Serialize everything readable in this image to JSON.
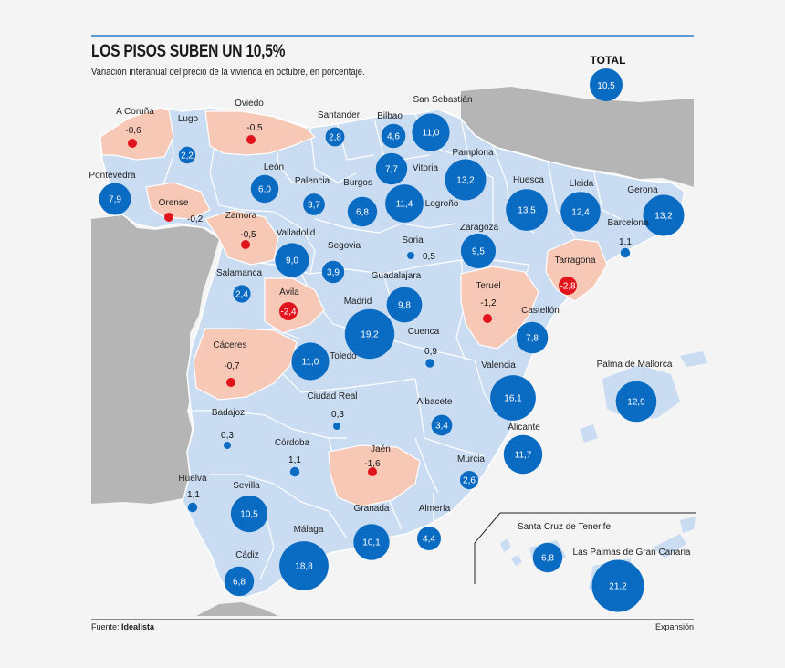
{
  "title": "LOS PISOS SUBEN UN 10,5%",
  "subtitle": "Variación interanual del precio de la vivienda en octubre, en porcentaje.",
  "source_prefix": "Fuente:",
  "source_name": "Idealista",
  "brand": "Expansión",
  "total": {
    "label": "TOTAL",
    "value": "10,5"
  },
  "canary_labels": [
    "Santa Cruz de Tenerife",
    "Las Palmas de Gran Canaria"
  ],
  "colors": {
    "land_positive": "#c9dcf2",
    "land_negative": "#f8c8b6",
    "neighbour": "#b5b5b6",
    "sea": "#f4f4f4",
    "bubble_positive": "#0a6bc2",
    "bubble_negative": "#e1141d",
    "border": "#ffffff"
  },
  "provinces": [
    {
      "name": "A Coruña",
      "value": "-0,6"
    },
    {
      "name": "Lugo",
      "value": "2,2"
    },
    {
      "name": "Oviedo",
      "value": "-0,5"
    },
    {
      "name": "Santander",
      "value": "2,8"
    },
    {
      "name": "Bilbao",
      "value": "4,6"
    },
    {
      "name": "San Sebastián",
      "value": "11,0"
    },
    {
      "name": "Pontevedra",
      "value": "7,9"
    },
    {
      "name": "León",
      "value": "6,0"
    },
    {
      "name": "Palencia",
      "value": "3,7"
    },
    {
      "name": "Burgos",
      "value": "6,8"
    },
    {
      "name": "Vitoria",
      "value": "7,7"
    },
    {
      "name": "Logroño",
      "value": "11,4"
    },
    {
      "name": "Pamplona",
      "value": "13,2"
    },
    {
      "name": "Huesca",
      "value": "13,5"
    },
    {
      "name": "Lleida",
      "value": "12,4"
    },
    {
      "name": "Gerona",
      "value": "13,2"
    },
    {
      "name": "Orense",
      "value": "-0,2"
    },
    {
      "name": "Zamora",
      "value": "-0,5"
    },
    {
      "name": "Valladolid",
      "value": "9,0"
    },
    {
      "name": "Soria",
      "value": "0,5"
    },
    {
      "name": "Zaragoza",
      "value": "9,5"
    },
    {
      "name": "Barcelona",
      "value": "1,1"
    },
    {
      "name": "Segovia",
      "value": "3,9"
    },
    {
      "name": "Tarragona",
      "value": "-2,8"
    },
    {
      "name": "Salamanca",
      "value": "2,4"
    },
    {
      "name": "Ávila",
      "value": "-2,4"
    },
    {
      "name": "Guadalajara",
      "value": "9,8"
    },
    {
      "name": "Teruel",
      "value": "-1,2"
    },
    {
      "name": "Madrid",
      "value": "19,2"
    },
    {
      "name": "Castellón",
      "value": "7,8"
    },
    {
      "name": "Cáceres",
      "value": "-0,7"
    },
    {
      "name": "Toledo",
      "value": "11,0"
    },
    {
      "name": "Cuenca",
      "value": "0,9"
    },
    {
      "name": "Valencia",
      "value": "16,1"
    },
    {
      "name": "Palma de Mallorca",
      "value": "12,9"
    },
    {
      "name": "Ciudad Real",
      "value": "0,3"
    },
    {
      "name": "Albacete",
      "value": "3,4"
    },
    {
      "name": "Badajoz",
      "value": "0,3"
    },
    {
      "name": "Alicante",
      "value": "11,7"
    },
    {
      "name": "Córdoba",
      "value": "1,1"
    },
    {
      "name": "Jaén",
      "value": "-1,6"
    },
    {
      "name": "Murcia",
      "value": "2,6"
    },
    {
      "name": "Huelva",
      "value": "1,1"
    },
    {
      "name": "Sevilla",
      "value": "10,5"
    },
    {
      "name": "Granada",
      "value": "10,1"
    },
    {
      "name": "Almería",
      "value": "4,4"
    },
    {
      "name": "Cádiz",
      "value": "6,8"
    },
    {
      "name": "Málaga",
      "value": "18,8"
    },
    {
      "name": "Santa Cruz de Tenerife",
      "value": "6,8"
    },
    {
      "name": "Las Palmas de Gran Canaria",
      "value": "21,2"
    }
  ]
}
